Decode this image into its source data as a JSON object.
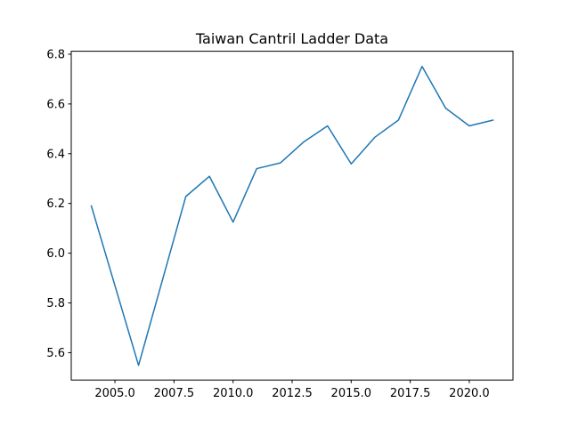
{
  "chart_data": {
    "type": "line",
    "title": "Taiwan Cantril Ladder Data",
    "xlabel": "",
    "ylabel": "",
    "xlim": [
      2003.15,
      2021.85
    ],
    "ylim": [
      5.49,
      6.812
    ],
    "grid": false,
    "legend": "none",
    "x_ticks": [
      2005.0,
      2007.5,
      2010.0,
      2012.5,
      2015.0,
      2017.5,
      2020.0
    ],
    "x_tick_labels": [
      "2005.0",
      "2007.5",
      "2010.0",
      "2012.5",
      "2015.0",
      "2017.5",
      "2020.0"
    ],
    "y_ticks": [
      5.6,
      5.8,
      6.0,
      6.2,
      6.4,
      6.6,
      6.8
    ],
    "y_tick_labels": [
      "5.6",
      "5.8",
      "6.0",
      "6.2",
      "6.4",
      "6.6",
      "6.8"
    ],
    "series": [
      {
        "color": "#1f77b4",
        "x": [
          2004,
          2006,
          2008,
          2009,
          2010,
          2011,
          2012,
          2013,
          2014,
          2015,
          2016,
          2017,
          2018,
          2019,
          2020,
          2021
        ],
        "y": [
          6.19,
          5.549,
          6.228,
          6.309,
          6.125,
          6.34,
          6.363,
          6.448,
          6.512,
          6.359,
          6.466,
          6.535,
          6.751,
          6.583,
          6.512,
          6.535
        ]
      }
    ]
  }
}
